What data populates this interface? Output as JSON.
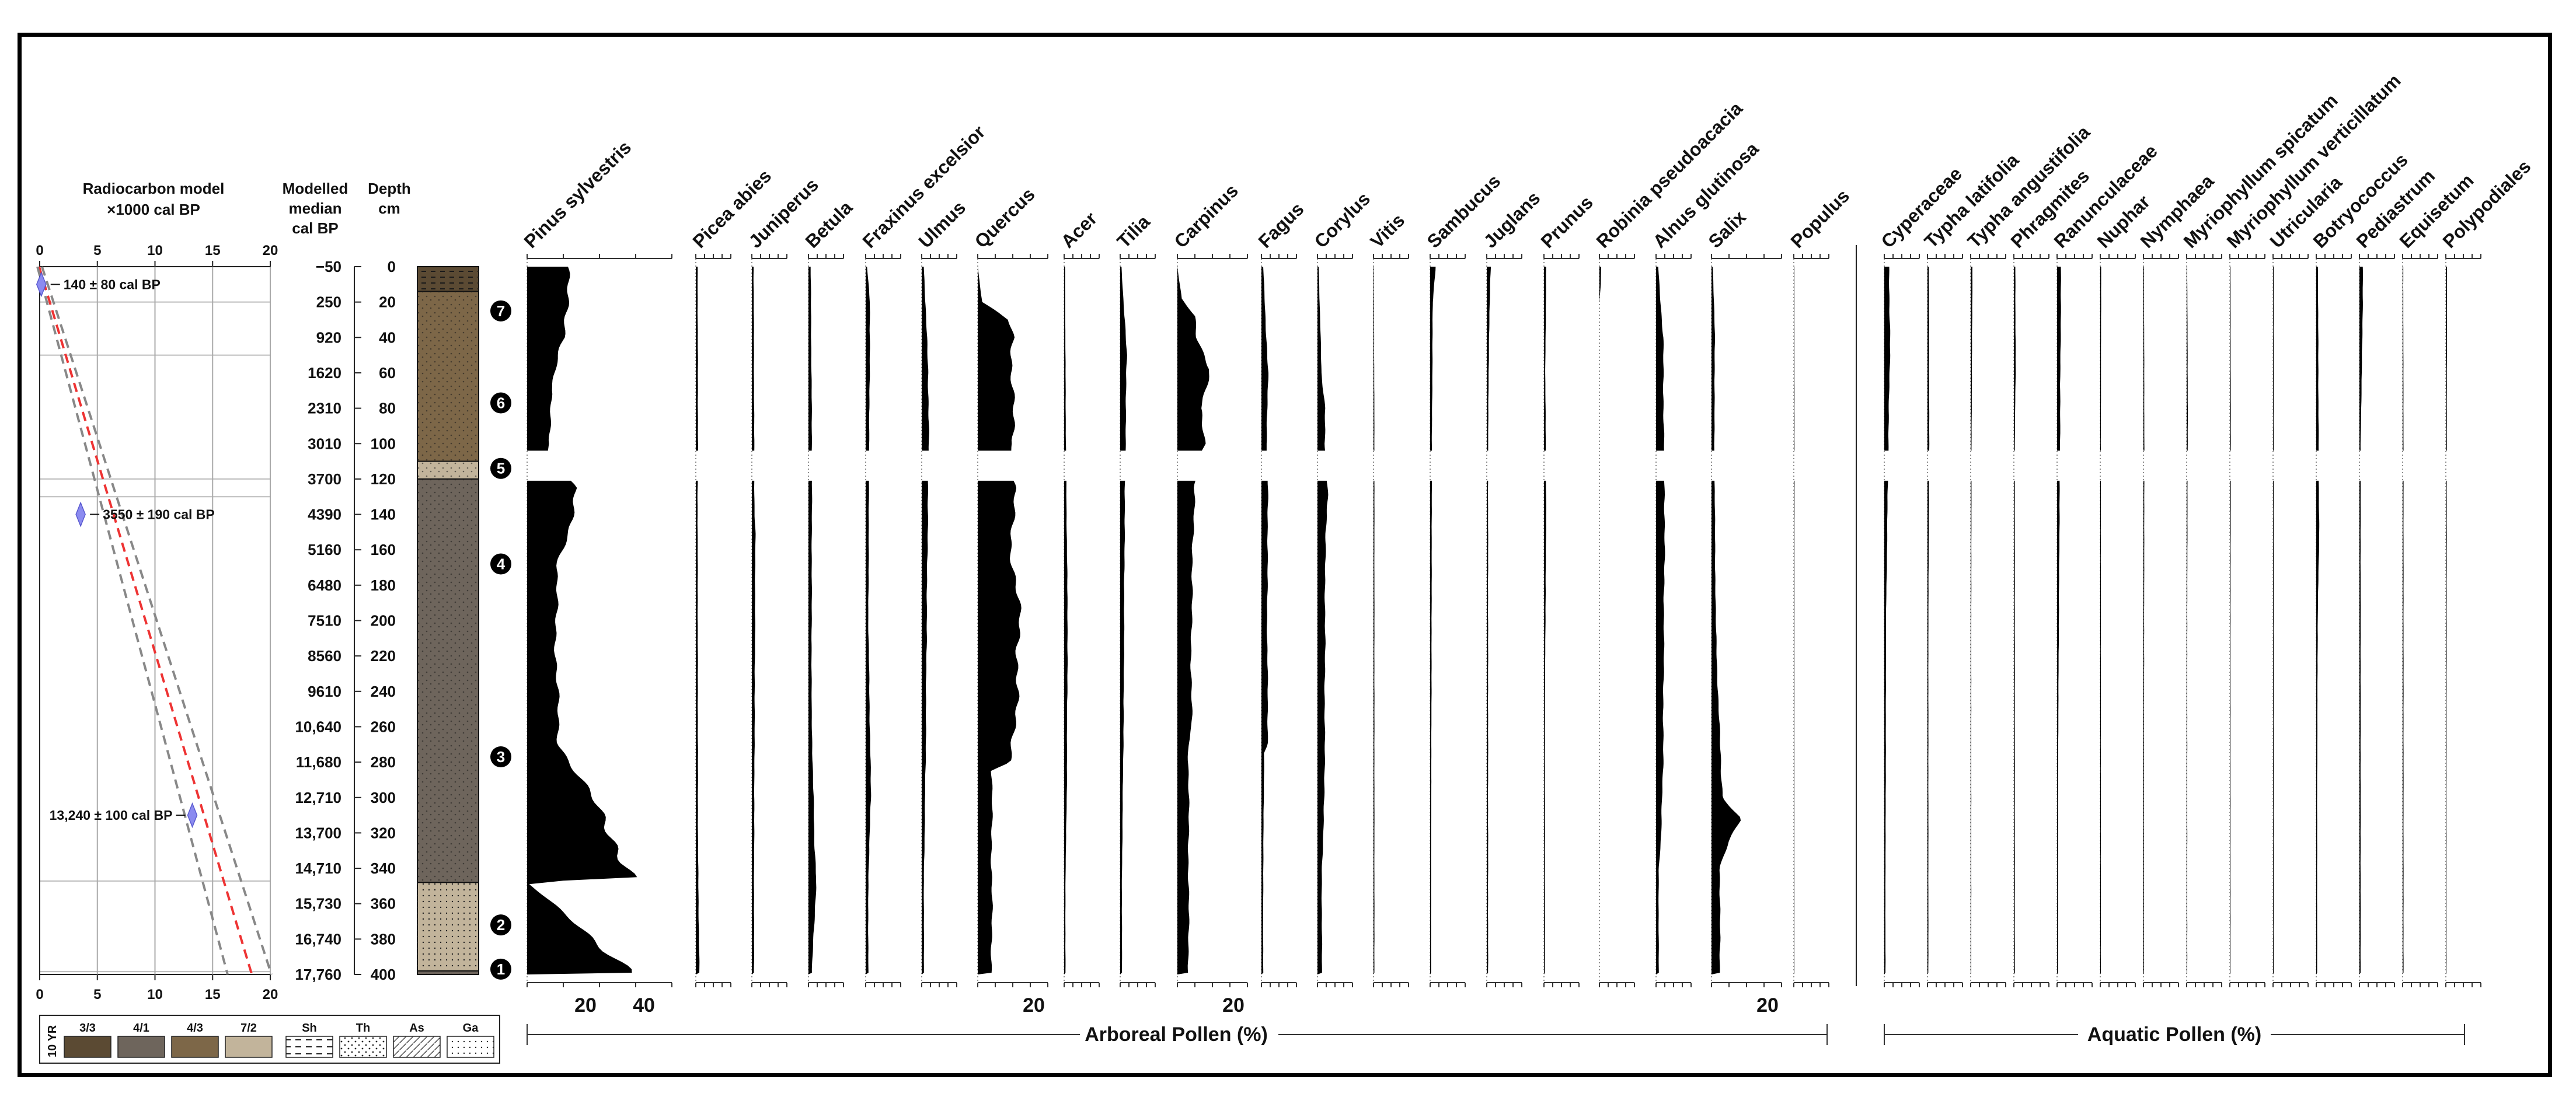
{
  "chart_data": {
    "type": "area",
    "radiocarbon_panel": {
      "title_line1": "Radiocarbon model",
      "title_line2": "×1000 cal BP",
      "x_ticks": [
        "0",
        "5",
        "10",
        "15",
        "20"
      ],
      "xlim": [
        0,
        20
      ],
      "dates": [
        {
          "label": "140 ± 80 cal BP",
          "depth": 10,
          "age_ka": 0.14
        },
        {
          "label": "3550 ± 190 cal BP",
          "depth": 140,
          "age_ka": 3.55
        },
        {
          "label": "13,240 ± 100 cal BP",
          "depth": 310,
          "age_ka": 13.24
        }
      ]
    },
    "age_axis": {
      "title_line1": "Modelled",
      "title_line2": "median",
      "title_line3": "cal BP",
      "labels": [
        "−50",
        "250",
        "920",
        "1620",
        "2310",
        "3010",
        "3700",
        "4390",
        "5160",
        "6480",
        "7510",
        "8560",
        "9610",
        "10,640",
        "11,680",
        "12,710",
        "13,700",
        "14,710",
        "15,730",
        "16,740",
        "17,760"
      ]
    },
    "depth_axis": {
      "title_line1": "Depth",
      "title_line2": "cm",
      "labels": [
        "0",
        "20",
        "40",
        "60",
        "80",
        "100",
        "120",
        "140",
        "160",
        "180",
        "200",
        "220",
        "240",
        "260",
        "280",
        "300",
        "320",
        "340",
        "360",
        "380",
        "400"
      ],
      "ylim": [
        0,
        400
      ]
    },
    "units": [
      {
        "label": "7",
        "depth": 25
      },
      {
        "label": "6",
        "depth": 77
      },
      {
        "label": "5",
        "depth": 114
      },
      {
        "label": "4",
        "depth": 168
      },
      {
        "label": "3",
        "depth": 277
      },
      {
        "label": "2",
        "depth": 372
      },
      {
        "label": "1",
        "depth": 397
      }
    ],
    "legend": {
      "color_prefix": "10 YR",
      "colors": [
        {
          "label": "3/3",
          "hex": "#5b4a33"
        },
        {
          "label": "4/1",
          "hex": "#6e655c"
        },
        {
          "label": "4/3",
          "hex": "#7d6748"
        },
        {
          "label": "7/2",
          "hex": "#c2b49b"
        }
      ],
      "textures": [
        "Sh",
        "Th",
        "As",
        "Ga"
      ]
    },
    "group_labels": [
      "Arboreal Pollen (%)",
      "Aquatic Pollen (%)"
    ],
    "taxa": [
      {
        "name": "Pinus sylvestris",
        "group": "arboreal",
        "ticks": [
          "20",
          "40"
        ],
        "max": 48,
        "profile": [
          [
            0,
            14
          ],
          [
            40,
            13
          ],
          [
            55,
            10
          ],
          [
            70,
            8
          ],
          [
            100,
            8
          ],
          [
            105,
            7
          ],
          [
            125,
            16
          ],
          [
            150,
            15
          ],
          [
            170,
            10
          ],
          [
            230,
            10
          ],
          [
            270,
            11
          ],
          [
            300,
            22
          ],
          [
            330,
            32
          ],
          [
            345,
            36
          ],
          [
            348,
            0
          ],
          [
            398,
            36
          ]
        ]
      },
      {
        "name": "Picea abies",
        "group": "arboreal",
        "ticks": [],
        "max": 8,
        "profile": [
          [
            0,
            0.4
          ],
          [
            100,
            0.5
          ],
          [
            130,
            0.4
          ],
          [
            330,
            0.5
          ],
          [
            398,
            0.8
          ]
        ]
      },
      {
        "name": "Juniperus",
        "group": "arboreal",
        "ticks": [],
        "max": 8,
        "profile": [
          [
            0,
            0.4
          ],
          [
            140,
            0.6
          ],
          [
            150,
            0.8
          ],
          [
            340,
            0.5
          ]
        ]
      },
      {
        "name": "Betula",
        "group": "arboreal",
        "ticks": [],
        "max": 8,
        "profile": [
          [
            0,
            0.5
          ],
          [
            100,
            0.8
          ],
          [
            250,
            0.7
          ],
          [
            320,
            1.3
          ],
          [
            345,
            1.8
          ],
          [
            398,
            0.8
          ]
        ]
      },
      {
        "name": "Fraxinus excelsior",
        "group": "arboreal",
        "ticks": [],
        "max": 8,
        "profile": [
          [
            0,
            0.3
          ],
          [
            20,
            1.0
          ],
          [
            100,
            0.8
          ],
          [
            200,
            0.6
          ],
          [
            300,
            1.2
          ],
          [
            345,
            0.6
          ]
        ]
      },
      {
        "name": "Ulmus",
        "group": "arboreal",
        "ticks": [],
        "max": 8,
        "profile": [
          [
            0,
            0.5
          ],
          [
            60,
            1.5
          ],
          [
            100,
            1.6
          ],
          [
            160,
            1.3
          ],
          [
            240,
            1.0
          ],
          [
            280,
            0.9
          ],
          [
            345,
            0.5
          ]
        ]
      },
      {
        "name": "Quercus",
        "group": "arboreal",
        "ticks": [
          "20"
        ],
        "max": 25,
        "profile": [
          [
            0,
            0
          ],
          [
            20,
            1.5
          ],
          [
            30,
            11
          ],
          [
            40,
            13
          ],
          [
            60,
            12
          ],
          [
            100,
            13
          ],
          [
            110,
            11
          ],
          [
            125,
            13
          ],
          [
            160,
            12
          ],
          [
            200,
            15
          ],
          [
            240,
            14
          ],
          [
            280,
            12
          ],
          [
            285,
            5
          ]
        ]
      },
      {
        "name": "Acer",
        "group": "arboreal",
        "ticks": [],
        "max": 8,
        "profile": [
          [
            0,
            0.2
          ],
          [
            100,
            0.4
          ],
          [
            200,
            0.8
          ],
          [
            300,
            0.6
          ],
          [
            345,
            0.3
          ]
        ]
      },
      {
        "name": "Tilia",
        "group": "arboreal",
        "ticks": [],
        "max": 8,
        "profile": [
          [
            0,
            0.3
          ],
          [
            50,
            1.5
          ],
          [
            100,
            1.2
          ],
          [
            150,
            1.0
          ],
          [
            250,
            0.8
          ],
          [
            345,
            0.4
          ]
        ]
      },
      {
        "name": "Carpinus",
        "group": "arboreal",
        "ticks": [
          "20"
        ],
        "max": 25,
        "profile": [
          [
            0,
            0
          ],
          [
            18,
            1.5
          ],
          [
            28,
            6
          ],
          [
            40,
            7
          ],
          [
            58,
            12
          ],
          [
            80,
            8
          ],
          [
            100,
            10
          ],
          [
            110,
            8
          ],
          [
            125,
            6
          ],
          [
            200,
            5
          ],
          [
            260,
            5
          ],
          [
            270,
            4
          ]
        ]
      },
      {
        "name": "Fagus",
        "group": "arboreal",
        "ticks": [],
        "max": 8,
        "profile": [
          [
            0,
            0.4
          ],
          [
            60,
            1.5
          ],
          [
            100,
            1.2
          ],
          [
            130,
            1.5
          ],
          [
            200,
            1.3
          ],
          [
            270,
            1.5
          ],
          [
            275,
            0.6
          ],
          [
            345,
            0.4
          ]
        ]
      },
      {
        "name": "Corylus",
        "group": "arboreal",
        "ticks": [],
        "max": 8,
        "profile": [
          [
            0,
            0.3
          ],
          [
            60,
            0.9
          ],
          [
            80,
            1.8
          ],
          [
            100,
            1.6
          ],
          [
            130,
            2.5
          ],
          [
            150,
            1.8
          ],
          [
            300,
            1.6
          ],
          [
            340,
            1.0
          ]
        ]
      },
      {
        "name": "Vitis",
        "group": "arboreal",
        "ticks": [],
        "max": 8,
        "profile": [
          [
            0,
            0.1
          ],
          [
            100,
            0.2
          ],
          [
            300,
            0.2
          ]
        ]
      },
      {
        "name": "Sambucus",
        "group": "arboreal",
        "ticks": [],
        "max": 8,
        "profile": [
          [
            0,
            1.2
          ],
          [
            20,
            0.6
          ],
          [
            100,
            0.4
          ],
          [
            250,
            0.3
          ],
          [
            340,
            0.2
          ]
        ]
      },
      {
        "name": "Juglans",
        "group": "arboreal",
        "ticks": [],
        "max": 8,
        "profile": [
          [
            0,
            0.9
          ],
          [
            40,
            0.5
          ],
          [
            100,
            0.3
          ]
        ]
      },
      {
        "name": "Prunus",
        "group": "arboreal",
        "ticks": [],
        "max": 8,
        "profile": [
          [
            0,
            0.5
          ],
          [
            60,
            0.3
          ],
          [
            140,
            0.5
          ],
          [
            250,
            0.2
          ]
        ]
      },
      {
        "name": "Robinia pseudoacacia",
        "group": "arboreal",
        "ticks": [],
        "max": 8,
        "profile": [
          [
            0,
            0.4
          ],
          [
            10,
            0.3
          ],
          [
            20,
            0
          ]
        ]
      },
      {
        "name": "Alnus glutinosa",
        "group": "arboreal",
        "ticks": [],
        "max": 8,
        "profile": [
          [
            0,
            0.5
          ],
          [
            40,
            1.6
          ],
          [
            100,
            1.8
          ],
          [
            130,
            2.0
          ],
          [
            200,
            1.8
          ],
          [
            280,
            1.6
          ],
          [
            320,
            1.2
          ],
          [
            340,
            0.6
          ]
        ]
      },
      {
        "name": "Salix",
        "group": "arboreal",
        "ticks": [
          "20"
        ],
        "max": 25,
        "profile": [
          [
            0,
            0.5
          ],
          [
            40,
            1.2
          ],
          [
            100,
            1.0
          ],
          [
            200,
            1.5
          ],
          [
            250,
            2.5
          ],
          [
            300,
            4
          ],
          [
            312,
            10
          ],
          [
            325,
            6
          ],
          [
            340,
            3
          ]
        ]
      },
      {
        "name": "Populus",
        "group": "arboreal",
        "ticks": [],
        "max": 8,
        "profile": [
          [
            0,
            0.1
          ],
          [
            100,
            0.15
          ],
          [
            300,
            0.1
          ]
        ]
      },
      {
        "name": "Cyperaceae",
        "group": "aquatic",
        "ticks": [],
        "max": 8,
        "profile": [
          [
            0,
            1.6
          ],
          [
            40,
            2.0
          ],
          [
            80,
            1.6
          ],
          [
            100,
            1.4
          ],
          [
            200,
            0.6
          ],
          [
            300,
            0.5
          ],
          [
            340,
            0.4
          ]
        ]
      },
      {
        "name": "Typha latifolia",
        "group": "aquatic",
        "ticks": [],
        "max": 8,
        "profile": [
          [
            0,
            0.5
          ],
          [
            100,
            0.6
          ],
          [
            200,
            0.3
          ]
        ]
      },
      {
        "name": "Typha angustifolia",
        "group": "aquatic",
        "ticks": [],
        "max": 8,
        "profile": [
          [
            0,
            0.6
          ],
          [
            100,
            0.3
          ],
          [
            200,
            0.2
          ]
        ]
      },
      {
        "name": "Phragmites",
        "group": "aquatic",
        "ticks": [],
        "max": 8,
        "profile": [
          [
            0,
            0.5
          ],
          [
            60,
            0.6
          ],
          [
            100,
            0.3
          ]
        ]
      },
      {
        "name": "Ranunculaceae",
        "group": "aquatic",
        "ticks": [],
        "max": 8,
        "profile": [
          [
            0,
            1.4
          ],
          [
            40,
            1.2
          ],
          [
            100,
            1.0
          ],
          [
            200,
            0.6
          ],
          [
            300,
            0.3
          ]
        ]
      },
      {
        "name": "Nuphar",
        "group": "aquatic",
        "ticks": [],
        "max": 8,
        "profile": [
          [
            0,
            0.3
          ],
          [
            100,
            0.2
          ],
          [
            300,
            0.2
          ]
        ]
      },
      {
        "name": "Nymphaea",
        "group": "aquatic",
        "ticks": [],
        "max": 8,
        "profile": [
          [
            0,
            0.2
          ],
          [
            100,
            0.3
          ],
          [
            250,
            0.2
          ]
        ]
      },
      {
        "name": "Myriophyllum spicatum",
        "group": "aquatic",
        "ticks": [],
        "max": 8,
        "profile": [
          [
            0,
            0.2
          ],
          [
            80,
            0.4
          ],
          [
            120,
            0.3
          ],
          [
            200,
            0.2
          ]
        ]
      },
      {
        "name": "Myriophyllum verticillatum",
        "group": "aquatic",
        "ticks": [],
        "max": 8,
        "profile": [
          [
            0,
            0.2
          ],
          [
            100,
            0.3
          ],
          [
            200,
            0.2
          ]
        ]
      },
      {
        "name": "Utricularia",
        "group": "aquatic",
        "ticks": [],
        "max": 8,
        "profile": [
          [
            0,
            0.2
          ],
          [
            100,
            0.2
          ]
        ]
      },
      {
        "name": "Botryococcus",
        "group": "aquatic",
        "ticks": [],
        "max": 8,
        "profile": [
          [
            0,
            0.6
          ],
          [
            100,
            0.8
          ],
          [
            150,
            1.0
          ],
          [
            200,
            0.5
          ],
          [
            300,
            0.3
          ]
        ]
      },
      {
        "name": "Pediastrum",
        "group": "aquatic",
        "ticks": [],
        "max": 8,
        "profile": [
          [
            0,
            1.2
          ],
          [
            40,
            1.0
          ],
          [
            100,
            0.4
          ]
        ]
      },
      {
        "name": "Equisetum",
        "group": "aquatic",
        "ticks": [],
        "max": 8,
        "profile": [
          [
            0,
            0.2
          ],
          [
            100,
            0.3
          ]
        ]
      },
      {
        "name": "Polypodiales",
        "group": "aquatic",
        "ticks": [],
        "max": 8,
        "profile": [
          [
            0,
            0.4
          ],
          [
            100,
            0.3
          ],
          [
            300,
            0.2
          ]
        ]
      }
    ]
  }
}
